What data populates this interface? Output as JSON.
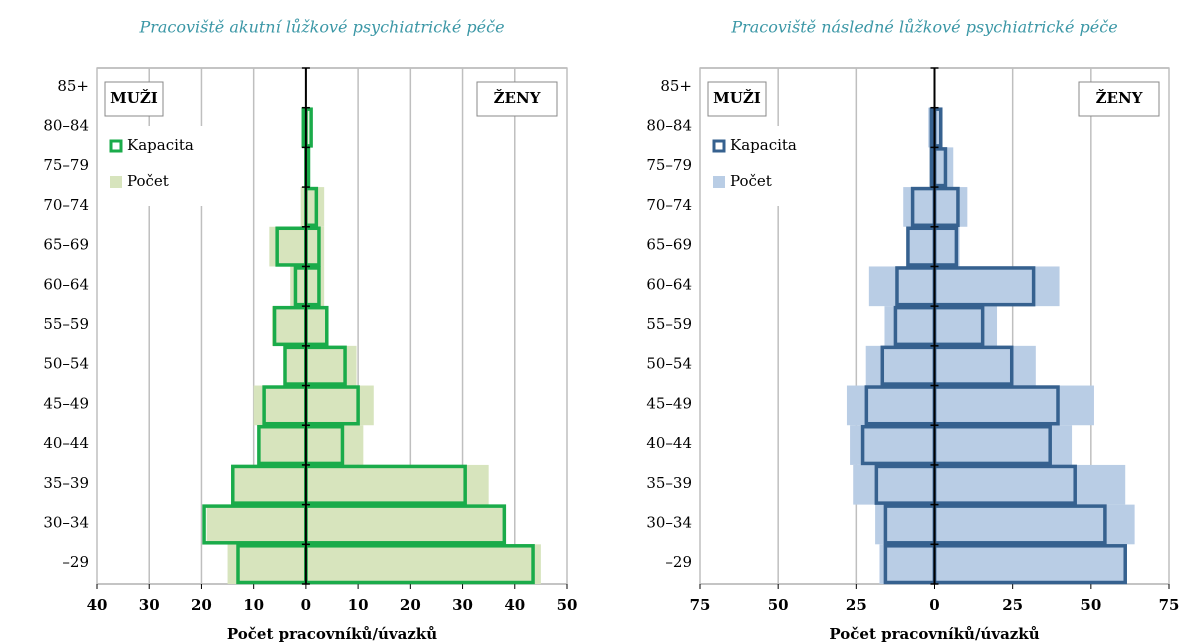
{
  "chart_data": [
    {
      "type": "pyramid",
      "title": "Pracoviště akutní lůžkové psychiatrické péče",
      "xlabel": "Počet pracovníků/úvazků",
      "left_label": "MUŽI",
      "right_label": "ŽENY",
      "categories": [
        "–29",
        "30–34",
        "35–39",
        "40–44",
        "45–49",
        "50–54",
        "55–59",
        "60–64",
        "65–69",
        "70–74",
        "75–79",
        "80–84",
        "85+"
      ],
      "xlim": [
        -40,
        50
      ],
      "xticks": [
        {
          "value": -40,
          "label": "40"
        },
        {
          "value": -30,
          "label": "30"
        },
        {
          "value": -20,
          "label": "20"
        },
        {
          "value": -10,
          "label": "10"
        },
        0,
        10,
        20,
        30,
        40,
        50
      ],
      "grid": true,
      "series": [
        {
          "name": "Kapacita",
          "style": "outline",
          "color": "#1aab4a",
          "men": [
            -13,
            -19.5,
            -14,
            -9,
            -8,
            -4,
            -6,
            -2,
            -5.5,
            0,
            0,
            -0.5,
            0
          ],
          "women": [
            43.5,
            38,
            30.5,
            7,
            10,
            7.5,
            4,
            2.5,
            2.5,
            2,
            0.5,
            1,
            0
          ]
        },
        {
          "name": "Počet",
          "style": "fill",
          "color": "#d7e4bd",
          "men": [
            -15,
            -19,
            -14,
            -9,
            -10,
            -4,
            -6.5,
            -3,
            -7,
            -1,
            0,
            -0.5,
            0
          ],
          "women": [
            45,
            38,
            35,
            11,
            13,
            9.7,
            4,
            3.5,
            3.5,
            3.5,
            0.5,
            0.5,
            0
          ]
        }
      ]
    },
    {
      "type": "pyramid",
      "title": "Pracoviště následné lůžkové psychiatrické péče",
      "xlabel": "Počet pracovníků/úvazků",
      "left_label": "MUŽI",
      "right_label": "ŽENY",
      "categories": [
        "–29",
        "30–34",
        "35–39",
        "40–44",
        "45–49",
        "50–54",
        "55–59",
        "60–64",
        "65–69",
        "70–74",
        "75–79",
        "80–84",
        "85+"
      ],
      "xlim": [
        -75,
        75
      ],
      "xticks": [
        {
          "value": -75,
          "label": "75"
        },
        {
          "value": -50,
          "label": "50"
        },
        {
          "value": -25,
          "label": "25"
        },
        0,
        25,
        50,
        75
      ],
      "grid": true,
      "series": [
        {
          "name": "Kapacita",
          "style": "outline",
          "color": "#36618f",
          "men": [
            -15.7,
            -15.7,
            -18.6,
            -23,
            -21.8,
            -16.7,
            -12.5,
            -12,
            -8.5,
            -7,
            -1,
            -1,
            0
          ],
          "women": [
            61,
            54.5,
            45,
            37,
            39.5,
            24.7,
            15.4,
            31.7,
            7,
            7.5,
            3.5,
            2,
            0
          ]
        },
        {
          "name": "Počet",
          "style": "fill",
          "color": "#b9cde5",
          "men": [
            -17.6,
            -19,
            -26,
            -27,
            -28,
            -22,
            -16,
            -21,
            -8,
            -10,
            -1,
            -2,
            0
          ],
          "women": [
            61,
            64,
            61,
            44,
            51,
            32.4,
            20,
            40,
            8,
            10.5,
            6,
            1.5,
            0
          ]
        }
      ]
    }
  ]
}
